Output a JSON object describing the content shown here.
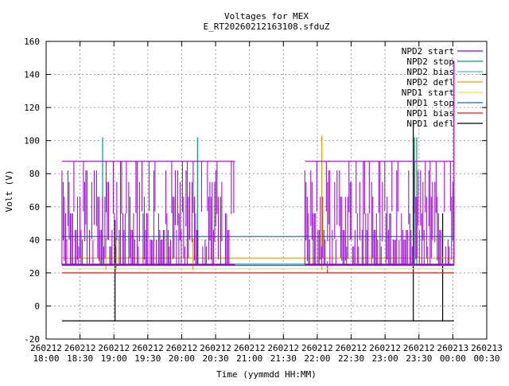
{
  "chart_data": {
    "type": "line",
    "title": "Voltages for MEX",
    "subtitle": "E_RT20260212163108.sfduZ",
    "xlabel": "Time (yymmdd HH:MM)",
    "ylabel": "Volt (V)",
    "ylim": [
      -20,
      160
    ],
    "yticks": [
      -20,
      0,
      20,
      40,
      60,
      80,
      100,
      120,
      140,
      160
    ],
    "xlim": [
      "2026-02-12 18:00",
      "2026-02-13 00:30"
    ],
    "xticks": [
      {
        "date": "260212",
        "time": "18:00",
        "t": "2026-02-12 18:00"
      },
      {
        "date": "260212",
        "time": "18:30",
        "t": "2026-02-12 18:30"
      },
      {
        "date": "260212",
        "time": "19:00",
        "t": "2026-02-12 19:00"
      },
      {
        "date": "260212",
        "time": "19:30",
        "t": "2026-02-12 19:30"
      },
      {
        "date": "260212",
        "time": "20:00",
        "t": "2026-02-12 20:00"
      },
      {
        "date": "260212",
        "time": "20:30",
        "t": "2026-02-12 20:30"
      },
      {
        "date": "260212",
        "time": "21:00",
        "t": "2026-02-12 21:00"
      },
      {
        "date": "260212",
        "time": "21:30",
        "t": "2026-02-12 21:30"
      },
      {
        "date": "260212",
        "time": "22:00",
        "t": "2026-02-12 22:00"
      },
      {
        "date": "260212",
        "time": "22:30",
        "t": "2026-02-12 22:30"
      },
      {
        "date": "260212",
        "time": "23:00",
        "t": "2026-02-12 23:00"
      },
      {
        "date": "260212",
        "time": "23:30",
        "t": "2026-02-12 23:30"
      },
      {
        "date": "260213",
        "time": "00:00",
        "t": "2026-02-13 00:00"
      },
      {
        "date": "260213",
        "time": "00:30",
        "t": "2026-02-13 00:30"
      }
    ],
    "grid": true,
    "legend_position": "top-right",
    "series": [
      {
        "name": "NPD2 start",
        "color": "#9400d3",
        "style": "dense",
        "segments": [
          {
            "start": "2026-02-12 18:14",
            "end": "2026-02-12 20:47",
            "low": 25,
            "high": 87.5,
            "levels": [
              87.5,
              82,
              75,
              66,
              56,
              46,
              40,
              36,
              25
            ]
          },
          {
            "start": "2026-02-12 21:49",
            "end": "2026-02-13 00:01",
            "low": 25,
            "high": 87.5,
            "levels": [
              87.5,
              82,
              75,
              66,
              56,
              46,
              40,
              36,
              25
            ]
          }
        ],
        "spikes": [
          {
            "t": "2026-02-13 00:01",
            "low": 25,
            "high": 148
          }
        ]
      },
      {
        "name": "NPD2 stop",
        "color": "#009e73",
        "baseline": [
          {
            "start": "2026-02-12 18:14",
            "end": "2026-02-13 00:01",
            "value": 24.5
          }
        ],
        "spikes": [
          {
            "t": "2026-02-12 18:50",
            "low": 24.5,
            "high": 102
          },
          {
            "t": "2026-02-12 20:14",
            "low": 24.5,
            "high": 102
          },
          {
            "t": "2026-02-12 23:26",
            "low": 24.5,
            "high": 102
          },
          {
            "t": "2026-02-12 23:28",
            "low": 24.5,
            "high": 102
          }
        ]
      },
      {
        "name": "NPD2 bias",
        "color": "#56b4e9",
        "baseline": [
          {
            "start": "2026-02-12 18:14",
            "end": "2026-02-13 00:01",
            "value": 25
          }
        ],
        "spikes": []
      },
      {
        "name": "NPD2 defl",
        "color": "#e69f00",
        "baseline": [
          {
            "start": "2026-02-12 18:14",
            "end": "2026-02-13 00:01",
            "value": 29
          }
        ],
        "spikes": [
          {
            "t": "2026-02-12 18:53",
            "low": 22,
            "high": 41
          },
          {
            "t": "2026-02-12 19:02",
            "low": 22,
            "high": 41
          },
          {
            "t": "2026-02-12 20:10",
            "low": 22,
            "high": 41
          },
          {
            "t": "2026-02-12 22:04",
            "low": 22,
            "high": 103
          }
        ]
      },
      {
        "name": "NPD1 start",
        "color": "#f0e442",
        "baseline": [
          {
            "start": "2026-02-12 18:14",
            "end": "2026-02-13 00:01",
            "value": 22.5
          }
        ],
        "spikes": []
      },
      {
        "name": "NPD1 stop",
        "color": "#0072b2",
        "baseline": [
          {
            "start": "2026-02-12 18:14",
            "end": "2026-02-13 00:01",
            "value": 42
          }
        ],
        "spikes": []
      },
      {
        "name": "NPD1 bias",
        "color": "#e51e10",
        "baseline": [
          {
            "start": "2026-02-12 18:14",
            "end": "2026-02-13 00:01",
            "value": 20
          }
        ],
        "spikes": [
          {
            "t": "2026-02-12 22:09",
            "low": 20,
            "high": 27
          }
        ]
      },
      {
        "name": "NPD1 defl",
        "color": "#000000",
        "baseline": [
          {
            "start": "2026-02-12 18:14",
            "end": "2026-02-13 00:01",
            "value": -9
          }
        ],
        "spikes": [
          {
            "t": "2026-02-12 19:01",
            "low": -9,
            "high": 52
          },
          {
            "t": "2026-02-12 23:25",
            "low": -9,
            "high": 112
          },
          {
            "t": "2026-02-12 23:51",
            "low": -9,
            "high": 56
          }
        ]
      }
    ]
  }
}
